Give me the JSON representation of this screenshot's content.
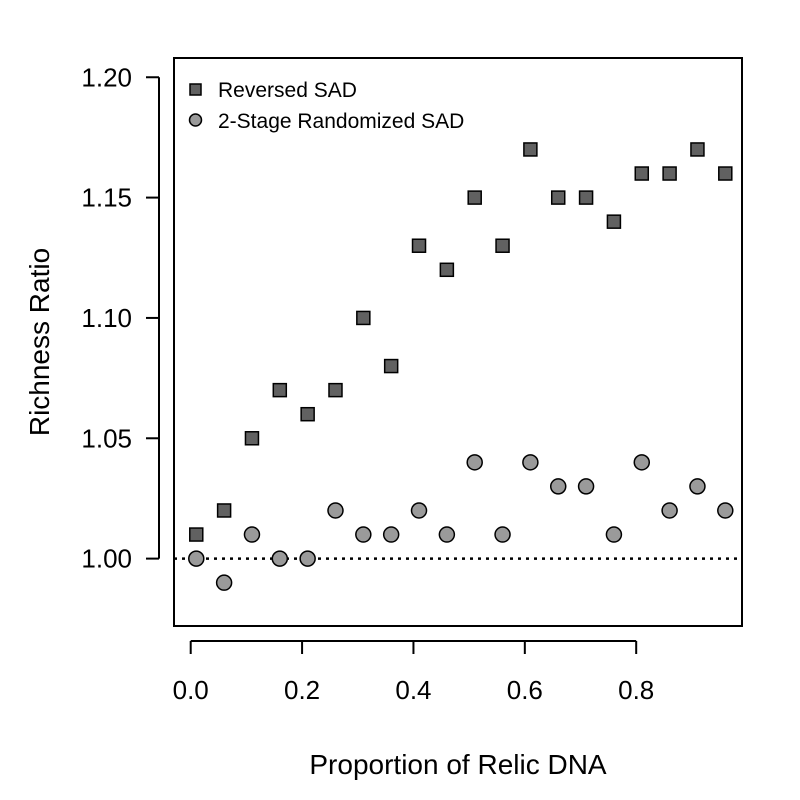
{
  "chart_data": {
    "type": "scatter",
    "title": "",
    "xlabel": "Proportion of Relic DNA",
    "ylabel": "Richness Ratio",
    "xlim": [
      -0.03,
      0.99
    ],
    "ylim": [
      0.972,
      1.208
    ],
    "x_ticks": [
      0.0,
      0.2,
      0.4,
      0.6,
      0.8
    ],
    "x_tick_labels": [
      "0.0",
      "0.2",
      "0.4",
      "0.6",
      "0.8"
    ],
    "y_ticks": [
      1.0,
      1.05,
      1.1,
      1.15,
      1.2
    ],
    "y_tick_labels": [
      "1.00",
      "1.05",
      "1.10",
      "1.15",
      "1.20"
    ],
    "grid": false,
    "legend_position": "top-left",
    "reference_line": {
      "y": 1.0,
      "style": "dotted"
    },
    "series": [
      {
        "name": "Reversed SAD",
        "marker": "square",
        "color": "#616161",
        "x": [
          0.01,
          0.06,
          0.11,
          0.16,
          0.21,
          0.26,
          0.31,
          0.36,
          0.41,
          0.46,
          0.51,
          0.56,
          0.61,
          0.66,
          0.71,
          0.76,
          0.81,
          0.86,
          0.91,
          0.96
        ],
        "y": [
          1.01,
          1.02,
          1.05,
          1.07,
          1.06,
          1.07,
          1.1,
          1.08,
          1.13,
          1.12,
          1.15,
          1.13,
          1.17,
          1.15,
          1.15,
          1.14,
          1.16,
          1.16,
          1.17,
          1.16
        ]
      },
      {
        "name": "2-Stage Randomized SAD",
        "marker": "circle",
        "color": "#9a9a9a",
        "x": [
          0.01,
          0.06,
          0.11,
          0.16,
          0.21,
          0.26,
          0.31,
          0.36,
          0.41,
          0.46,
          0.51,
          0.56,
          0.61,
          0.66,
          0.71,
          0.76,
          0.81,
          0.86,
          0.91,
          0.96
        ],
        "y": [
          1.0,
          0.99,
          1.01,
          1.0,
          1.0,
          1.02,
          1.01,
          1.01,
          1.02,
          1.01,
          1.04,
          1.01,
          1.04,
          1.03,
          1.03,
          1.01,
          1.04,
          1.02,
          1.03,
          1.02
        ]
      }
    ]
  }
}
